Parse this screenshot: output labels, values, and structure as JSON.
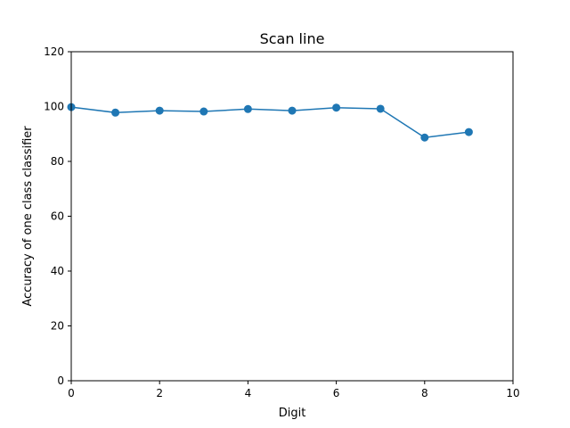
{
  "chart_data": {
    "type": "line",
    "title": "Scan line",
    "xlabel": "Digit",
    "ylabel": "Accuracy of one class classifier",
    "xlim": [
      0,
      10
    ],
    "ylim": [
      0,
      120
    ],
    "xticks": [
      0,
      2,
      4,
      6,
      8,
      10
    ],
    "yticks": [
      0,
      20,
      40,
      60,
      80,
      100,
      120
    ],
    "grid": false,
    "legend": "none",
    "series": [
      {
        "color": "#1f77b4",
        "marker": "circle",
        "x": [
          0,
          1,
          2,
          3,
          4,
          5,
          6,
          7,
          8,
          9
        ],
        "y": [
          99.8,
          97.8,
          98.5,
          98.2,
          99.1,
          98.5,
          99.6,
          99.2,
          88.7,
          90.7
        ]
      }
    ]
  }
}
